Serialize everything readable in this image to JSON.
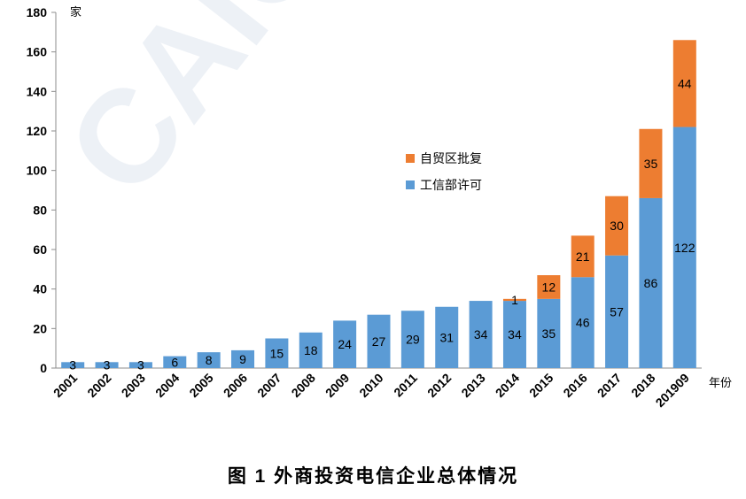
{
  "watermark": "CAICT",
  "caption": "图 1 外商投资电信企业总体情况",
  "chart_data": {
    "type": "bar",
    "stacked": true,
    "categories": [
      "2001",
      "2002",
      "2003",
      "2004",
      "2005",
      "2006",
      "2007",
      "2008",
      "2009",
      "2010",
      "2011",
      "2012",
      "2013",
      "2014",
      "2015",
      "2016",
      "2017",
      "2018",
      "201909"
    ],
    "series": [
      {
        "name": "工信部许可",
        "color": "#5b9bd5",
        "values": [
          3,
          3,
          3,
          6,
          8,
          9,
          15,
          18,
          24,
          27,
          29,
          31,
          34,
          34,
          35,
          46,
          57,
          86,
          122
        ],
        "labels": [
          "3",
          "3",
          "3",
          "6",
          "8",
          "9",
          "15",
          "18",
          "24",
          "27",
          "29",
          "31",
          "34",
          "34",
          "35",
          "46",
          "57",
          "86",
          "122"
        ]
      },
      {
        "name": "自贸区批复",
        "color": "#ed7d31",
        "values": [
          0,
          0,
          0,
          0,
          0,
          0,
          0,
          0,
          0,
          0,
          0,
          0,
          0,
          1,
          12,
          21,
          30,
          35,
          44
        ],
        "labels": [
          "",
          "",
          "",
          "",
          "",
          "",
          "",
          "",
          "",
          "",
          "",
          "",
          "",
          "1",
          "12",
          "21",
          "30",
          "35",
          "44"
        ]
      }
    ],
    "ylabel": "家",
    "xlabel": "年份",
    "ylim": [
      0,
      180
    ],
    "yticks": [
      0,
      20,
      40,
      60,
      80,
      100,
      120,
      140,
      160,
      180
    ],
    "legend_position": "center",
    "grid": false
  }
}
